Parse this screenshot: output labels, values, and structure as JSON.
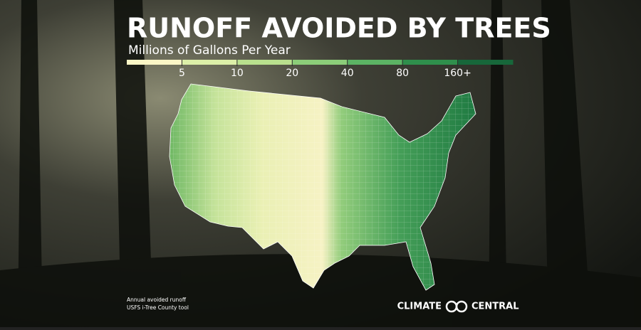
{
  "header": {
    "title": "RUNOFF AVOIDED BY TREES",
    "subtitle": "Millions of Gallons Per Year"
  },
  "legend": {
    "labels": [
      "5",
      "10",
      "20",
      "40",
      "80",
      "160+"
    ],
    "colors": [
      "#fbf6c6",
      "#dcefa8",
      "#b9e08e",
      "#8ccd79",
      "#5cb364",
      "#2f8f4c",
      "#17673a"
    ]
  },
  "source": {
    "line1": "Annual avoided runoff",
    "line2": "USFS i-Tree County tool"
  },
  "logo": {
    "left": "CLIMATE",
    "right": "CENTRAL"
  }
}
